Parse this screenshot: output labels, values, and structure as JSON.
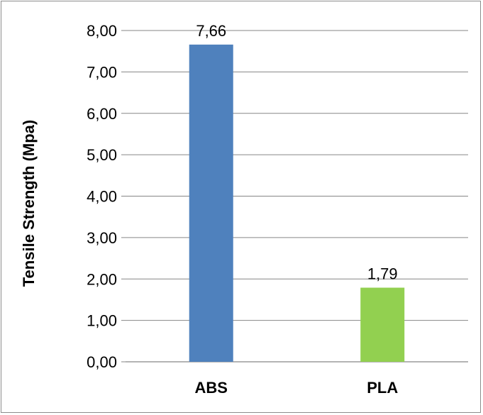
{
  "chart_data": {
    "type": "bar",
    "categories": [
      "ABS",
      "PLA"
    ],
    "values": [
      7.66,
      1.79
    ],
    "value_labels": [
      "7,66",
      "1,79"
    ],
    "title": "",
    "xlabel": "",
    "ylabel": "Tensile Strength (Mpa)",
    "ylim": [
      0,
      8
    ],
    "yticks": [
      0,
      1,
      2,
      3,
      4,
      5,
      6,
      7,
      8
    ],
    "ytick_labels": [
      "0,00",
      "1,00",
      "2,00",
      "3,00",
      "4,00",
      "5,00",
      "6,00",
      "7,00",
      "8,00"
    ],
    "grid": true,
    "legend": "none",
    "bar_colors": [
      "#4f81bd",
      "#92d050"
    ]
  }
}
